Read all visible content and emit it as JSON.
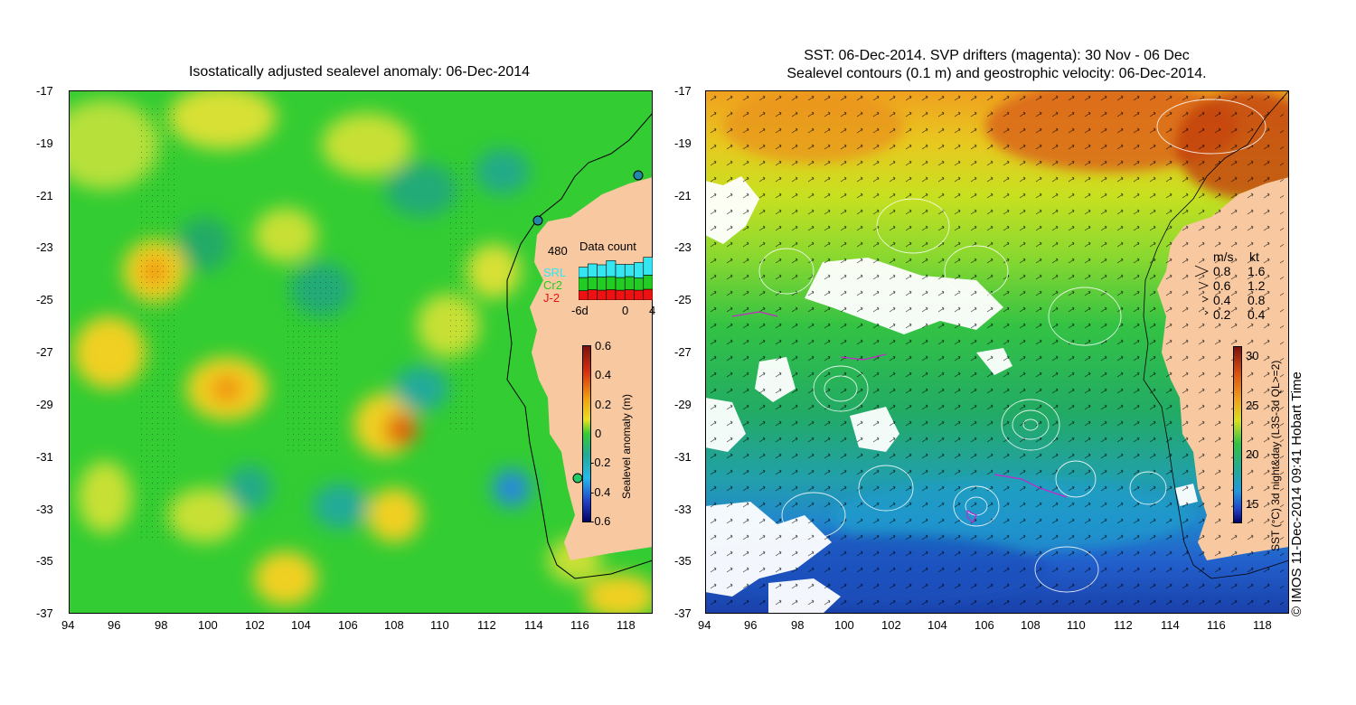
{
  "left_panel": {
    "title": "Isostatically adjusted sealevel anomaly: 06-Dec-2014",
    "y_ticks": [
      "-17",
      "-19",
      "-21",
      "-23",
      "-25",
      "-27",
      "-29",
      "-31",
      "-33",
      "-35",
      "-37"
    ],
    "x_ticks": [
      "94",
      "96",
      "98",
      "100",
      "102",
      "104",
      "106",
      "108",
      "110",
      "112",
      "114",
      "116",
      "118"
    ],
    "data_count": {
      "title": "Data count",
      "max_label": "480",
      "legend": [
        {
          "name": "SRL",
          "color": "#33e6f0"
        },
        {
          "name": "Cr2",
          "color": "#22cc22"
        },
        {
          "name": "J-2",
          "color": "#ee1111"
        }
      ],
      "x_labels": [
        "-6d",
        "0",
        "4"
      ],
      "bars": [
        {
          "j2": 0.2,
          "cr2": 0.28,
          "srl": 0.22
        },
        {
          "j2": 0.22,
          "cr2": 0.27,
          "srl": 0.28
        },
        {
          "j2": 0.21,
          "cr2": 0.28,
          "srl": 0.26
        },
        {
          "j2": 0.22,
          "cr2": 0.28,
          "srl": 0.34
        },
        {
          "j2": 0.21,
          "cr2": 0.27,
          "srl": 0.28
        },
        {
          "j2": 0.22,
          "cr2": 0.28,
          "srl": 0.26
        },
        {
          "j2": 0.21,
          "cr2": 0.26,
          "srl": 0.33
        },
        {
          "j2": 0.23,
          "cr2": 0.3,
          "srl": 0.38
        }
      ]
    },
    "colorbar": {
      "label": "Sealevel anomaly (m)",
      "ticks": [
        "0.6",
        "0.4",
        "0.2",
        "0",
        "-0.2",
        "-0.4",
        "-0.6"
      ]
    }
  },
  "right_panel": {
    "title_line1": "SST: 06-Dec-2014. SVP drifters (magenta): 30 Nov - 06 Dec",
    "title_line2": "Sealevel contours (0.1 m) and geostrophic velocity: 06-Dec-2014.",
    "y_ticks": [
      "-17",
      "-19",
      "-21",
      "-23",
      "-25",
      "-27",
      "-29",
      "-31",
      "-33",
      "-35",
      "-37"
    ],
    "x_ticks": [
      "94",
      "96",
      "98",
      "100",
      "102",
      "104",
      "106",
      "108",
      "110",
      "112",
      "114",
      "116",
      "118"
    ],
    "speed_legend": {
      "header_ms": "m/s",
      "header_kt": "kt",
      "rows": [
        {
          "ms": "0.8",
          "kt": "1.6"
        },
        {
          "ms": "0.6",
          "kt": "1.2"
        },
        {
          "ms": "0.4",
          "kt": "0.8"
        },
        {
          "ms": "0.2",
          "kt": "0.4"
        }
      ]
    },
    "colorbar": {
      "label": "SST (°C) 3d night&day (L3S-3d QL>=2)",
      "ticks": [
        "30",
        "25",
        "20",
        "15"
      ]
    }
  },
  "credit": "© IMOS 11-Dec-2014 09:41 Hobart Time",
  "colors": {
    "land": "#f8c8a0",
    "ssh_green": "#22cc33",
    "sst_green": "#22c24a"
  }
}
